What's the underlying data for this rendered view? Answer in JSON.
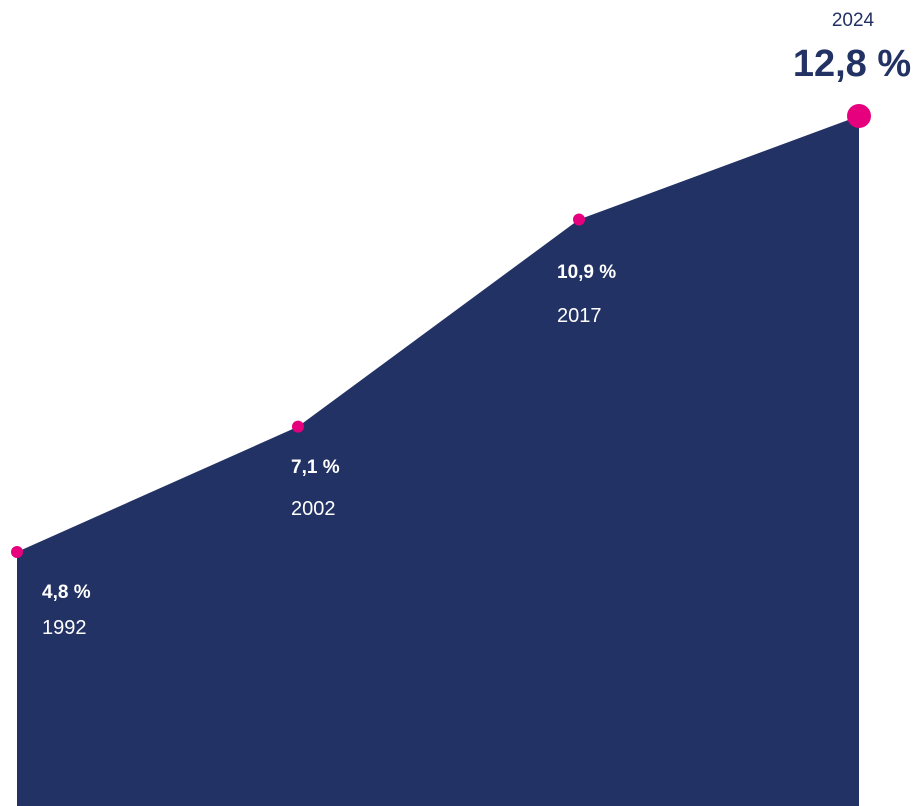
{
  "colors": {
    "area": "#233264",
    "marker": "#e6007e",
    "background": "#ffffff"
  },
  "chart_data": {
    "type": "area",
    "title": "",
    "xlabel": "",
    "ylabel": "",
    "grid": false,
    "x": [
      1992,
      2002,
      2017,
      2024
    ],
    "values": [
      4.8,
      7.1,
      10.9,
      12.8
    ],
    "labels": [
      {
        "value": "4,8 %",
        "year": "1992"
      },
      {
        "value": "7,1 %",
        "year": "2002"
      },
      {
        "value": "10,9 %",
        "year": "2017"
      },
      {
        "value": "12,8 %",
        "year": "2024"
      }
    ]
  }
}
